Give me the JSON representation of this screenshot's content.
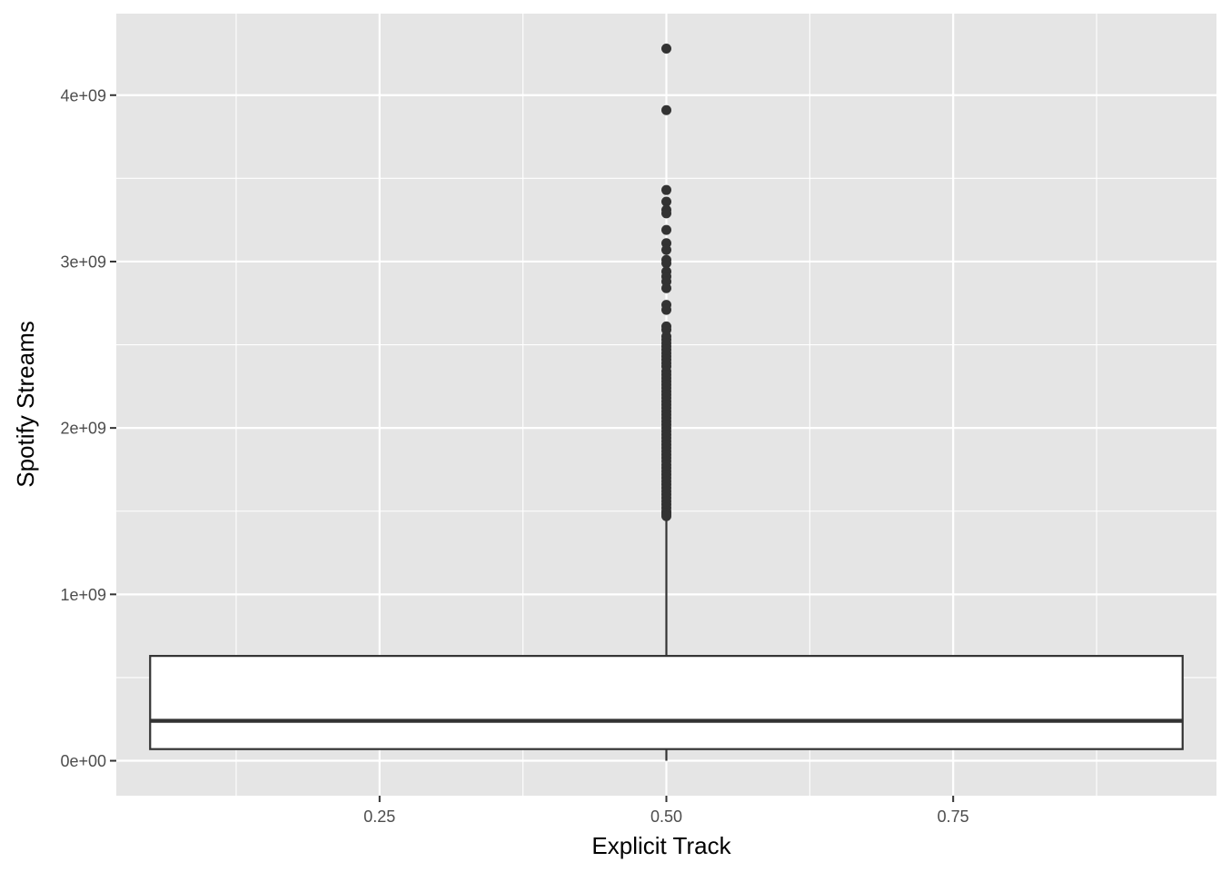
{
  "chart_data": {
    "type": "boxplot",
    "title": "",
    "xlabel": "Explicit Track",
    "ylabel": "Spotify Streams",
    "xlim": [
      0.0205,
      0.9795
    ],
    "ylim": [
      -210000000,
      4490000000
    ],
    "x_ticks": [
      {
        "value": 0.25,
        "label": "0.25"
      },
      {
        "value": 0.5,
        "label": "0.50"
      },
      {
        "value": 0.75,
        "label": "0.75"
      }
    ],
    "x_minor_gridlines": [
      0.125,
      0.375,
      0.625,
      0.875
    ],
    "y_ticks": [
      {
        "value": 0,
        "label": "0e+00"
      },
      {
        "value": 1000000000,
        "label": "1e+09"
      },
      {
        "value": 2000000000,
        "label": "2e+09"
      },
      {
        "value": 3000000000,
        "label": "3e+09"
      },
      {
        "value": 4000000000,
        "label": "4e+09"
      }
    ],
    "y_minor_gridlines": [
      500000000,
      1500000000,
      2500000000,
      3500000000
    ],
    "grid": true,
    "box": {
      "x": 0.5,
      "x_from": 0.05,
      "x_to": 0.95,
      "q1": 70000000,
      "median": 240000000,
      "q3": 630000000,
      "whisker_low": 0,
      "whisker_high": 1470000000
    },
    "outliers": [
      4280000000,
      3910000000,
      3430000000,
      3360000000,
      3310000000,
      3290000000,
      3190000000,
      3110000000,
      3070000000,
      3010000000,
      2990000000,
      2940000000,
      2910000000,
      2880000000,
      2840000000,
      2740000000,
      2710000000,
      2610000000,
      2590000000,
      2550000000,
      2530000000,
      2510000000,
      2490000000,
      2470000000,
      2450000000,
      2430000000,
      2410000000,
      2390000000,
      2370000000,
      2340000000,
      2320000000,
      2300000000,
      2280000000,
      2260000000,
      2240000000,
      2220000000,
      2200000000,
      2180000000,
      2160000000,
      2140000000,
      2120000000,
      2100000000,
      2080000000,
      2060000000,
      2040000000,
      2020000000,
      2000000000,
      1980000000,
      1960000000,
      1940000000,
      1920000000,
      1900000000,
      1880000000,
      1860000000,
      1840000000,
      1820000000,
      1800000000,
      1780000000,
      1760000000,
      1740000000,
      1720000000,
      1700000000,
      1680000000,
      1660000000,
      1640000000,
      1620000000,
      1600000000,
      1580000000,
      1560000000,
      1540000000,
      1520000000,
      1500000000,
      1490000000,
      1480000000,
      1470000000
    ],
    "colors": {
      "panel_background": "#e5e5e5",
      "grid": "#ffffff",
      "box_fill": "#ffffff",
      "box_line": "#333333",
      "point": "#333333",
      "tick_label": "#4d4d4d",
      "axis_title": "#000000"
    }
  }
}
